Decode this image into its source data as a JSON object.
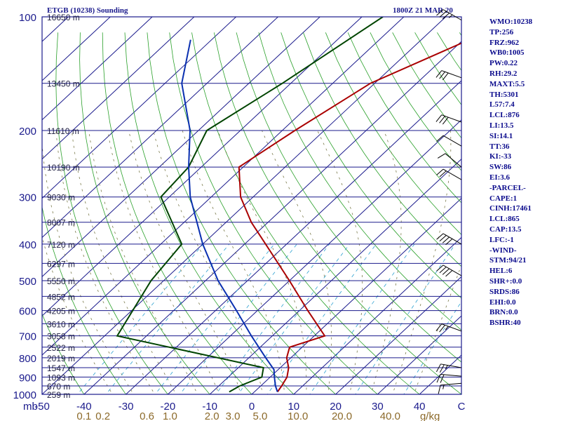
{
  "header": {
    "title": "ETGB (10238) Sounding",
    "time": "1800Z 21 MAR 20"
  },
  "stats": [
    "WMO:10238",
    "TP:256",
    "FRZ:962",
    "WB0:1005",
    "PW:0.22",
    "RH:29.2",
    "MAXT:5.5",
    "TH:5301",
    "L57:7.4",
    "LCL:876",
    "LI:13.5",
    "SI:14.1",
    "TT:36",
    "KI:-33",
    "SW:86",
    "EI:3.6",
    "-PARCEL-",
    "CAPE:1",
    "CINH:17461",
    "LCL:865",
    "CAP:13.5",
    "LFC:-1",
    "-WIND-",
    "STM:94/21",
    "HEL:6",
    "SHR+:0.0",
    "SRDS:86",
    "EHI:0.0",
    "BRN:0.0",
    "BSHR:40"
  ],
  "colors": {
    "isobar": "#1a1a8c",
    "isotherm": "#1a1a8c",
    "dry_adiabat": "#2aa02a",
    "moist_adiabat": "#7a7a4a",
    "mixing_ratio": "#2aa0d0",
    "temperature": "#aa0000",
    "dewpoint": "#004400",
    "parcel": "#0a30b0",
    "tick_text": "#8c6a2a"
  },
  "chart_data": {
    "type": "skew-t log-p sounding",
    "pressure_axis_label": "mb",
    "pressure_range_mb": [
      1000,
      100
    ],
    "temperature_range_c": [
      -50,
      50
    ],
    "pressure_ticks": [
      "100",
      "200",
      "300",
      "400",
      "500",
      "600",
      "700",
      "800",
      "900",
      "1000"
    ],
    "height_labels": [
      {
        "p": 100,
        "text": "16650 m"
      },
      {
        "p": 150,
        "text": "13450 m"
      },
      {
        "p": 200,
        "text": "11610 m"
      },
      {
        "p": 250,
        "text": "10190 m"
      },
      {
        "p": 300,
        "text": "9030 m"
      },
      {
        "p": 350,
        "text": "8007 m"
      },
      {
        "p": 400,
        "text": "7120 m"
      },
      {
        "p": 450,
        "text": "6297 m"
      },
      {
        "p": 500,
        "text": "5550 m"
      },
      {
        "p": 550,
        "text": "4852 m"
      },
      {
        "p": 600,
        "text": "4205 m"
      },
      {
        "p": 650,
        "text": "3610 m"
      },
      {
        "p": 700,
        "text": "3058 m"
      },
      {
        "p": 750,
        "text": "2522 m"
      },
      {
        "p": 800,
        "text": "2019 m"
      },
      {
        "p": 850,
        "text": "1547 m"
      },
      {
        "p": 900,
        "text": "1093 m"
      },
      {
        "p": 950,
        "text": "670 m"
      },
      {
        "p": 1000,
        "text": "259 m"
      }
    ],
    "temperature_ticks": [
      "-50",
      "-40",
      "-30",
      "-20",
      "-10",
      "0",
      "10",
      "20",
      "30",
      "40",
      "C"
    ],
    "mixing_ratio_ticks": [
      "0.1",
      "0.2",
      "0.6",
      "1.0",
      "2.0",
      "3.0",
      "5.0",
      "10.0",
      "20.0",
      "40.0",
      "g/kg"
    ],
    "mixing_ratio_positions_c": [
      -40,
      -35.5,
      -25,
      -19.5,
      -9.5,
      -4.5,
      2,
      11,
      21.5,
      33,
      42.5
    ],
    "series": [
      {
        "key": "temperature",
        "points": [
          {
            "p": 100,
            "t": -32
          },
          {
            "p": 150,
            "t": -51
          },
          {
            "p": 200,
            "t": -57
          },
          {
            "p": 250,
            "t": -61
          },
          {
            "p": 300,
            "t": -53
          },
          {
            "p": 350,
            "t": -44
          },
          {
            "p": 400,
            "t": -35
          },
          {
            "p": 500,
            "t": -20
          },
          {
            "p": 600,
            "t": -8
          },
          {
            "p": 700,
            "t": 2.5
          },
          {
            "p": 750,
            "t": -3
          },
          {
            "p": 800,
            "t": -1
          },
          {
            "p": 850,
            "t": 2
          },
          {
            "p": 900,
            "t": 4
          },
          {
            "p": 950,
            "t": 5
          },
          {
            "p": 985,
            "t": 5.5
          }
        ]
      },
      {
        "key": "dewpoint",
        "points": [
          {
            "p": 100,
            "t": -65
          },
          {
            "p": 150,
            "t": -72
          },
          {
            "p": 200,
            "t": -78
          },
          {
            "p": 250,
            "t": -73
          },
          {
            "p": 300,
            "t": -72
          },
          {
            "p": 400,
            "t": -55
          },
          {
            "p": 500,
            "t": -53
          },
          {
            "p": 700,
            "t": -47
          },
          {
            "p": 850,
            "t": -4
          },
          {
            "p": 900,
            "t": -2
          },
          {
            "p": 950,
            "t": -5
          },
          {
            "p": 985,
            "t": -6
          }
        ]
      },
      {
        "key": "parcel",
        "points": [
          {
            "p": 115,
            "t": -105
          },
          {
            "p": 150,
            "t": -96
          },
          {
            "p": 200,
            "t": -82
          },
          {
            "p": 250,
            "t": -73
          },
          {
            "p": 300,
            "t": -65
          },
          {
            "p": 400,
            "t": -50
          },
          {
            "p": 500,
            "t": -37
          },
          {
            "p": 600,
            "t": -25
          },
          {
            "p": 700,
            "t": -15
          },
          {
            "p": 800,
            "t": -6
          },
          {
            "p": 860,
            "t": -1
          },
          {
            "p": 900,
            "t": 1
          },
          {
            "p": 950,
            "t": 3.5
          },
          {
            "p": 985,
            "t": 5.5
          }
        ]
      }
    ],
    "winds": [
      {
        "p": 102,
        "dir": 300,
        "kt": 35
      },
      {
        "p": 145,
        "dir": 290,
        "kt": 30
      },
      {
        "p": 190,
        "dir": 290,
        "kt": 30
      },
      {
        "p": 220,
        "dir": 300,
        "kt": 10
      },
      {
        "p": 250,
        "dir": 310,
        "kt": 10
      },
      {
        "p": 270,
        "dir": 300,
        "kt": 20
      },
      {
        "p": 400,
        "dir": 300,
        "kt": 40
      },
      {
        "p": 485,
        "dir": 300,
        "kt": 40
      },
      {
        "p": 680,
        "dir": 290,
        "kt": 25
      },
      {
        "p": 850,
        "dir": 280,
        "kt": 25
      },
      {
        "p": 895,
        "dir": 275,
        "kt": 20
      },
      {
        "p": 935,
        "dir": 265,
        "kt": 15
      }
    ]
  }
}
